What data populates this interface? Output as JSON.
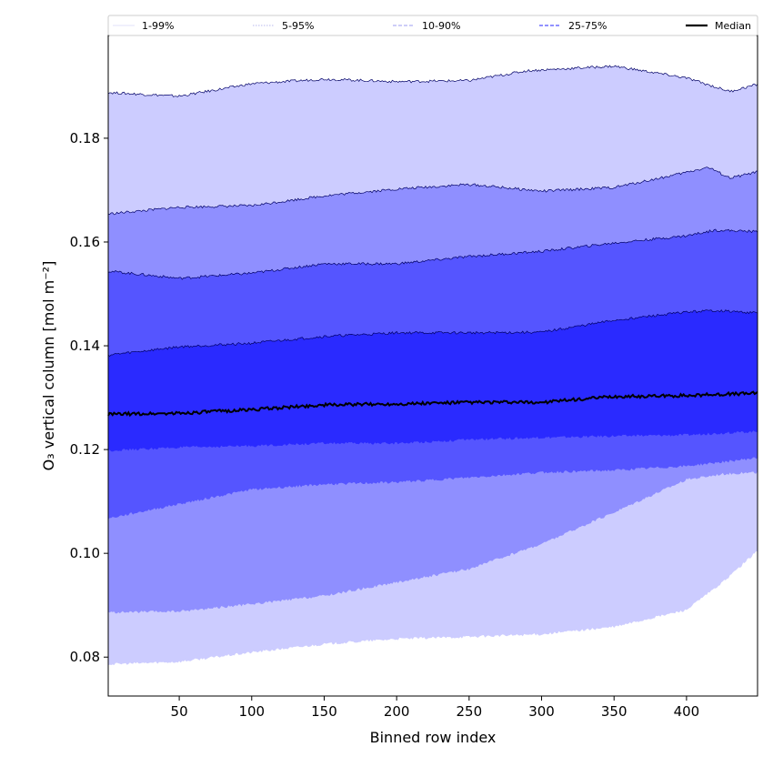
{
  "chart_data": {
    "type": "area",
    "title": "",
    "xlabel": "Binned row index",
    "ylabel": "O₃ vertical column [mol m⁻²]",
    "xlim": [
      1,
      449
    ],
    "ylim": [
      0.0725,
      0.1998
    ],
    "xticks": [
      50,
      100,
      150,
      200,
      250,
      300,
      350,
      400
    ],
    "yticks": [
      0.08,
      0.1,
      0.12,
      0.14,
      0.16,
      0.18
    ],
    "ytick_labels": [
      "0.08",
      "0.10",
      "0.12",
      "0.14",
      "0.16",
      "0.18"
    ],
    "grid": false,
    "legend_placement": "top (above plot, single row)",
    "legend": [
      {
        "label": "1-99%",
        "color": "#e0e0f8",
        "style": "solid"
      },
      {
        "label": "5-95%",
        "color": "#b8b8ee",
        "style": "dotted"
      },
      {
        "label": "10-90%",
        "color": "#9c9cf0",
        "style": "dashed"
      },
      {
        "label": "25-75%",
        "color": "#6f6fff",
        "style": "dashed"
      },
      {
        "label": "Median",
        "color": "#000000",
        "style": "solid"
      }
    ],
    "bands": [
      {
        "name": "1-99%",
        "fill": "#ccccff",
        "lower": "p1",
        "upper": "p99"
      },
      {
        "name": "5-95%",
        "fill": "#8f8fff",
        "lower": "p5",
        "upper": "p95"
      },
      {
        "name": "10-90%",
        "fill": "#5555ff",
        "lower": "p10",
        "upper": "p90"
      },
      {
        "name": "25-75%",
        "fill": "#2a2aff",
        "lower": "p25",
        "upper": "p75"
      }
    ],
    "series": {
      "p99": [
        [
          1,
          0.1888
        ],
        [
          50,
          0.1881
        ],
        [
          100,
          0.1905
        ],
        [
          150,
          0.1914
        ],
        [
          200,
          0.1909
        ],
        [
          250,
          0.1911
        ],
        [
          290,
          0.193
        ],
        [
          350,
          0.1939
        ],
        [
          400,
          0.1916
        ],
        [
          430,
          0.189
        ],
        [
          449,
          0.1904
        ]
      ],
      "p95": [
        [
          1,
          0.1654
        ],
        [
          50,
          0.1667
        ],
        [
          100,
          0.167
        ],
        [
          150,
          0.1689
        ],
        [
          200,
          0.1702
        ],
        [
          250,
          0.1711
        ],
        [
          300,
          0.1698
        ],
        [
          350,
          0.1705
        ],
        [
          390,
          0.1728
        ],
        [
          415,
          0.1744
        ],
        [
          430,
          0.1723
        ],
        [
          449,
          0.1735
        ]
      ],
      "p90": [
        [
          1,
          0.1544
        ],
        [
          50,
          0.153
        ],
        [
          100,
          0.154
        ],
        [
          150,
          0.1558
        ],
        [
          200,
          0.1558
        ],
        [
          250,
          0.1572
        ],
        [
          300,
          0.1582
        ],
        [
          350,
          0.1598
        ],
        [
          400,
          0.1612
        ],
        [
          420,
          0.1623
        ],
        [
          449,
          0.162
        ]
      ],
      "p75": [
        [
          1,
          0.1382
        ],
        [
          50,
          0.1398
        ],
        [
          100,
          0.1405
        ],
        [
          150,
          0.1418
        ],
        [
          200,
          0.1425
        ],
        [
          250,
          0.1425
        ],
        [
          300,
          0.1426
        ],
        [
          350,
          0.1449
        ],
        [
          400,
          0.1465
        ],
        [
          420,
          0.1468
        ],
        [
          449,
          0.1463
        ]
      ],
      "median": [
        [
          1,
          0.1268
        ],
        [
          50,
          0.127
        ],
        [
          100,
          0.1277
        ],
        [
          150,
          0.1286
        ],
        [
          200,
          0.1288
        ],
        [
          250,
          0.1291
        ],
        [
          300,
          0.1291
        ],
        [
          350,
          0.1302
        ],
        [
          400,
          0.1304
        ],
        [
          449,
          0.1309
        ]
      ],
      "p25": [
        [
          1,
          0.1198
        ],
        [
          50,
          0.1204
        ],
        [
          100,
          0.1207
        ],
        [
          150,
          0.1212
        ],
        [
          200,
          0.1212
        ],
        [
          250,
          0.1219
        ],
        [
          300,
          0.1223
        ],
        [
          350,
          0.1226
        ],
        [
          400,
          0.1228
        ],
        [
          449,
          0.1235
        ]
      ],
      "p10": [
        [
          1,
          0.1067
        ],
        [
          50,
          0.1095
        ],
        [
          100,
          0.1123
        ],
        [
          150,
          0.1133
        ],
        [
          200,
          0.1137
        ],
        [
          250,
          0.1146
        ],
        [
          300,
          0.1156
        ],
        [
          350,
          0.116
        ],
        [
          400,
          0.1168
        ],
        [
          449,
          0.1184
        ]
      ],
      "p5": [
        [
          1,
          0.0886
        ],
        [
          50,
          0.0888
        ],
        [
          100,
          0.0902
        ],
        [
          150,
          0.0918
        ],
        [
          200,
          0.0944
        ],
        [
          250,
          0.097
        ],
        [
          300,
          0.1018
        ],
        [
          350,
          0.1079
        ],
        [
          375,
          0.1111
        ],
        [
          400,
          0.1142
        ],
        [
          425,
          0.1153
        ],
        [
          449,
          0.1156
        ]
      ],
      "p1": [
        [
          1,
          0.0786
        ],
        [
          50,
          0.0791
        ],
        [
          100,
          0.0809
        ],
        [
          150,
          0.0825
        ],
        [
          200,
          0.0835
        ],
        [
          250,
          0.0839
        ],
        [
          300,
          0.0844
        ],
        [
          350,
          0.0858
        ],
        [
          400,
          0.0891
        ],
        [
          425,
          0.0944
        ],
        [
          449,
          0.1005
        ]
      ]
    }
  }
}
